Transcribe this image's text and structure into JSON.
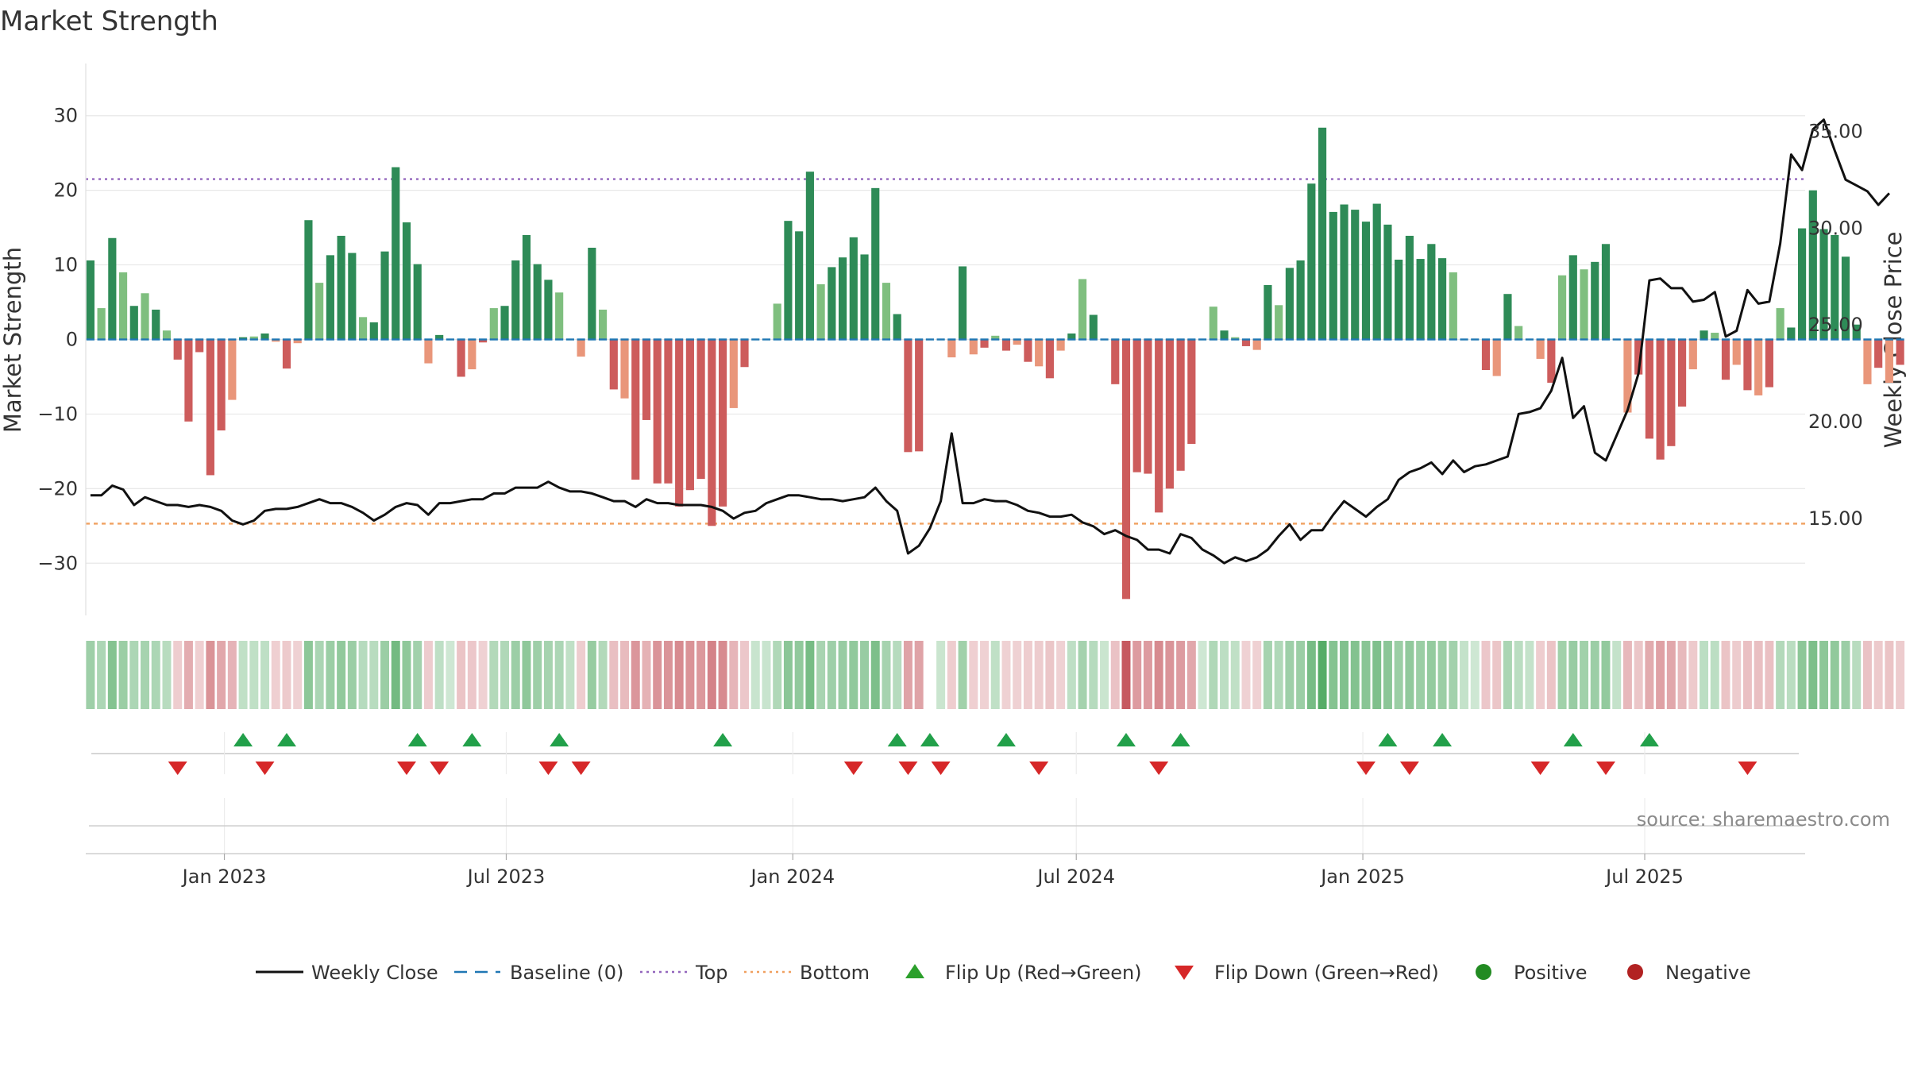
{
  "chart_data": {
    "type": "bar",
    "title": "Market Strength",
    "ylabel": "Market Strength",
    "y2label": "Weekly Close Price",
    "ylim": [
      -37,
      37
    ],
    "y2lim": [
      10.0,
      38.5
    ],
    "yticks": [
      30,
      20,
      10,
      0,
      -10,
      -20,
      -30
    ],
    "yticklabels": [
      "30",
      "20",
      "10",
      "0",
      "−10",
      "−20",
      "−30"
    ],
    "y2ticks": [
      35,
      30,
      25,
      20,
      15
    ],
    "y2ticklabels": [
      "35.00",
      "30.00",
      "25.00",
      "20.00",
      "15.00"
    ],
    "top_line": 21.5,
    "bottom_line": -24.7,
    "week_start": "2022-10-07",
    "x_start": "2022-10-04",
    "x_end": "2025-10-12",
    "xticks": [
      {
        "date": "2023-01-01",
        "label": "Jan 2023"
      },
      {
        "date": "2023-07-01",
        "label": "Jul 2023"
      },
      {
        "date": "2024-01-01",
        "label": "Jan 2024"
      },
      {
        "date": "2024-07-01",
        "label": "Jul 2024"
      },
      {
        "date": "2025-01-01",
        "label": "Jan 2025"
      },
      {
        "date": "2025-07-01",
        "label": "Jul 2025"
      }
    ],
    "strength": [
      10.6,
      4.2,
      13.6,
      9.0,
      4.5,
      6.2,
      4.0,
      1.2,
      -2.7,
      -11.0,
      -1.7,
      -18.2,
      -12.2,
      -8.1,
      0.3,
      0.4,
      0.8,
      -0.3,
      -3.9,
      -0.5,
      16.0,
      7.6,
      11.3,
      13.9,
      11.6,
      3.0,
      2.3,
      11.8,
      23.1,
      15.7,
      10.1,
      -3.2,
      0.6,
      0.0,
      -5.0,
      -4.0,
      -0.4,
      4.2,
      4.5,
      10.6,
      14.0,
      10.1,
      8.0,
      6.3,
      0.0,
      -2.3,
      12.3,
      4.0,
      -6.7,
      -7.9,
      -18.8,
      -10.8,
      -19.3,
      -19.3,
      -22.4,
      -20.2,
      -18.7,
      -25.0,
      -22.4,
      -9.2,
      -3.7,
      0.0,
      0.0,
      4.8,
      15.9,
      14.5,
      22.5,
      7.4,
      9.7,
      11.0,
      13.7,
      11.4,
      20.3,
      7.6,
      3.4,
      -15.1,
      -15.0,
      0.0,
      0.0,
      -2.4,
      9.8,
      -2.0,
      -1.1,
      0.5,
      -1.5,
      -0.7,
      -3.0,
      -3.6,
      -5.2,
      -1.5,
      0.8,
      8.1,
      3.3,
      0.0,
      -6.0,
      -34.8,
      -17.8,
      -18.0,
      -23.2,
      -20.0,
      -17.6,
      -14.0,
      0.0,
      4.4,
      1.2,
      0.3,
      -0.9,
      -1.4,
      7.3,
      4.6,
      9.6,
      10.6,
      20.9,
      28.4,
      17.1,
      18.1,
      17.4,
      15.8,
      18.2,
      15.4,
      10.7,
      13.9,
      10.8,
      12.8,
      10.9,
      9.0,
      0.0,
      0.0,
      -4.1,
      -4.9,
      6.1,
      1.8,
      0.0,
      -2.6,
      -5.8,
      8.6,
      11.3,
      9.4,
      10.4,
      12.8,
      0.0,
      -9.8,
      -4.7,
      -13.3,
      -16.1,
      -14.3,
      -9.0,
      -4.0,
      1.2,
      0.9,
      -5.4,
      -3.4,
      -6.8,
      -7.5,
      -6.4,
      4.2,
      1.6,
      14.9,
      20.0,
      14.8,
      14.0,
      11.1,
      2.0,
      -6.0,
      -3.8,
      -5.8,
      -3.4,
      -1.6
    ],
    "close": [
      16.2,
      16.2,
      16.7,
      16.5,
      15.7,
      16.1,
      15.9,
      15.7,
      15.7,
      15.6,
      15.7,
      15.6,
      15.4,
      14.9,
      14.7,
      14.9,
      15.4,
      15.5,
      15.5,
      15.6,
      15.8,
      16.0,
      15.8,
      15.8,
      15.6,
      15.3,
      14.9,
      15.2,
      15.6,
      15.8,
      15.7,
      15.2,
      15.8,
      15.8,
      15.9,
      16.0,
      16.0,
      16.3,
      16.3,
      16.6,
      16.6,
      16.6,
      16.9,
      16.6,
      16.4,
      16.4,
      16.3,
      16.1,
      15.9,
      15.9,
      15.6,
      16.0,
      15.8,
      15.8,
      15.7,
      15.7,
      15.7,
      15.6,
      15.4,
      15.0,
      15.3,
      15.4,
      15.8,
      16.0,
      16.2,
      16.2,
      16.1,
      16.0,
      16.0,
      15.9,
      16.0,
      16.1,
      16.6,
      15.9,
      15.4,
      13.2,
      13.6,
      14.5,
      15.9,
      19.4,
      15.8,
      15.8,
      16.0,
      15.9,
      15.9,
      15.7,
      15.4,
      15.3,
      15.1,
      15.1,
      15.2,
      14.8,
      14.6,
      14.2,
      14.4,
      14.1,
      13.9,
      13.4,
      13.4,
      13.2,
      14.2,
      14.0,
      13.4,
      13.1,
      12.7,
      13.0,
      12.8,
      13.0,
      13.4,
      14.1,
      14.7,
      13.9,
      14.4,
      14.4,
      15.2,
      15.9,
      15.5,
      15.1,
      15.6,
      16.0,
      17.0,
      17.4,
      17.6,
      17.9,
      17.3,
      18.0,
      17.4,
      17.7,
      17.8,
      18.0,
      18.2,
      20.4,
      20.5,
      20.7,
      21.6,
      23.3,
      20.2,
      20.8,
      18.4,
      18.0,
      19.3,
      20.6,
      22.5,
      27.3,
      27.4,
      26.9,
      26.9,
      26.2,
      26.3,
      26.7,
      24.4,
      24.7,
      26.8,
      26.1,
      26.2,
      29.2,
      33.8,
      33.0,
      35.1,
      35.6,
      34.0,
      32.5,
      32.2,
      31.9,
      31.2,
      31.8
    ],
    "strip_alpha": [
      0.49,
      0.42,
      0.62,
      0.51,
      0.42,
      0.45,
      0.42,
      0.36,
      0.27,
      0.45,
      0.26,
      0.59,
      0.48,
      0.41,
      0.32,
      0.32,
      0.33,
      0.26,
      0.29,
      0.25,
      0.58,
      0.43,
      0.51,
      0.56,
      0.51,
      0.37,
      0.36,
      0.51,
      0.71,
      0.57,
      0.47,
      0.28,
      0.33,
      0.25,
      0.32,
      0.3,
      0.25,
      0.39,
      0.4,
      0.5,
      0.57,
      0.49,
      0.45,
      0.42,
      0.32,
      0.27,
      0.53,
      0.39,
      0.35,
      0.37,
      0.57,
      0.42,
      0.58,
      0.58,
      0.63,
      0.59,
      0.56,
      0.68,
      0.63,
      0.4,
      0.3,
      0.28,
      0.28,
      0.4,
      0.59,
      0.56,
      0.69,
      0.44,
      0.49,
      0.52,
      0.56,
      0.52,
      0.66,
      0.45,
      0.37,
      0.5,
      0.5,
      0.0,
      0.27,
      0.27,
      0.48,
      0.26,
      0.25,
      0.32,
      0.25,
      0.25,
      0.27,
      0.28,
      0.31,
      0.25,
      0.33,
      0.46,
      0.37,
      0.27,
      0.33,
      0.9,
      0.54,
      0.54,
      0.63,
      0.58,
      0.54,
      0.48,
      0.25,
      0.4,
      0.34,
      0.32,
      0.25,
      0.25,
      0.45,
      0.4,
      0.49,
      0.51,
      0.69,
      0.86,
      0.62,
      0.64,
      0.63,
      0.6,
      0.65,
      0.59,
      0.51,
      0.56,
      0.51,
      0.54,
      0.51,
      0.47,
      0.3,
      0.25,
      0.3,
      0.31,
      0.43,
      0.35,
      0.3,
      0.27,
      0.32,
      0.48,
      0.52,
      0.48,
      0.5,
      0.55,
      0.3,
      0.39,
      0.31,
      0.46,
      0.51,
      0.48,
      0.38,
      0.29,
      0.34,
      0.34,
      0.32,
      0.28,
      0.34,
      0.35,
      0.34,
      0.39,
      0.35,
      0.58,
      0.66,
      0.58,
      0.56,
      0.5,
      0.36,
      0.33,
      0.29,
      0.32,
      0.28,
      0.25
    ],
    "flip_up": [
      14,
      18,
      30,
      35,
      43,
      58,
      74,
      77,
      84,
      95,
      100,
      119,
      124,
      136,
      143
    ],
    "flip_down": [
      8,
      16,
      29,
      32,
      42,
      45,
      70,
      75,
      78,
      87,
      98,
      117,
      121,
      133,
      139,
      152
    ],
    "legend": [
      {
        "kind": "line-solid",
        "label": "Weekly Close",
        "color": "#111111"
      },
      {
        "kind": "line-dash",
        "label": "Baseline (0)",
        "color": "#1f77b4"
      },
      {
        "kind": "line-dot",
        "label": "Top",
        "color": "#9467bd"
      },
      {
        "kind": "line-dot",
        "label": "Bottom",
        "color": "#f0a060"
      },
      {
        "kind": "tri-up",
        "label": "Flip Up (Red→Green)",
        "color": "#2ca02c"
      },
      {
        "kind": "tri-down",
        "label": "Flip Down (Green→Red)",
        "color": "#d62728"
      },
      {
        "kind": "dot",
        "label": "Positive",
        "color": "#228b22"
      },
      {
        "kind": "dot",
        "label": "Negative",
        "color": "#b22222"
      }
    ],
    "source": "source: sharemaestro.com"
  },
  "colors": {
    "strong_positive": "#2e8b57",
    "mild_positive": "#7fbf7f",
    "strong_negative": "#cd5c5c",
    "mild_negative": "#e9967a",
    "strip_positive": "#3a9e4e",
    "strip_negative": "#c0474f",
    "close_line": "#111111",
    "top_line": "#9467bd",
    "bottom_line": "#f0a060",
    "baseline": "#1f77b4",
    "flip_up": "#22a04a",
    "flip_down": "#d62728",
    "grid": "#e8e8e8"
  }
}
